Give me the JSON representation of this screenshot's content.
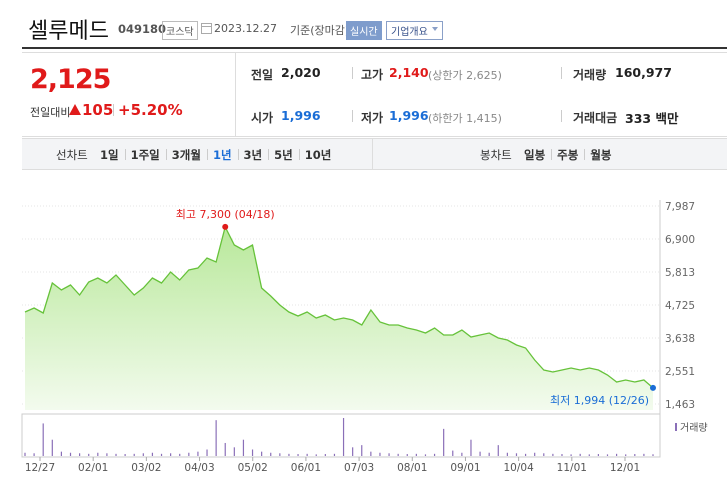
{
  "header": {
    "name": "셀루메드",
    "code": "049180",
    "market": "코스닥",
    "date": "2023.12.27",
    "basis": "기준(장마감)",
    "realtime": "실시간",
    "company": "기업개요"
  },
  "quote": {
    "price": "2,125",
    "change_label": "전일대비",
    "change": "105",
    "change_rate": "+5.20%",
    "rows": [
      [
        {
          "label": "전일",
          "value": "2,020"
        },
        {
          "label": "고가",
          "value": "2,140",
          "limit": "(상한가 2,625)"
        },
        {
          "label": "거래량",
          "value": "160,977"
        }
      ],
      [
        {
          "label": "시가",
          "value": "1,996"
        },
        {
          "label": "저가",
          "value": "1,996",
          "limit": "(하한가 1,415)"
        },
        {
          "label": "거래대금",
          "value": "333 백만"
        }
      ]
    ]
  },
  "tabs": {
    "line_label": "선차트",
    "line": [
      "1일",
      "1주일",
      "3개월",
      "1년",
      "3년",
      "5년",
      "10년"
    ],
    "selected_index": 3,
    "candle_label": "봉차트",
    "candle": [
      "일봉",
      "주봉",
      "월봉"
    ]
  },
  "chart": {
    "type": "area",
    "color": "#66c23a",
    "values": [
      4494,
      4626,
      4461,
      5450,
      5219,
      5384,
      5054,
      5483,
      5615,
      5450,
      5713,
      5384,
      5054,
      5285,
      5615,
      5450,
      5812,
      5549,
      5878,
      5944,
      6274,
      6142,
      7300,
      6702,
      6537,
      6702,
      5285,
      5021,
      4725,
      4494,
      4362,
      4494,
      4297,
      4396,
      4231,
      4297,
      4231,
      4066,
      4560,
      4165,
      4066,
      4066,
      3967,
      3901,
      3802,
      3967,
      3736,
      3736,
      3901,
      3670,
      3736,
      3802,
      3638,
      3572,
      3407,
      3308,
      2913,
      2583,
      2517,
      2583,
      2649,
      2583,
      2649,
      2583,
      2418,
      2188,
      2254,
      2188,
      2254,
      1994
    ],
    "volumes": [
      300000,
      250000,
      3000000,
      1500000,
      400000,
      300000,
      250000,
      200000,
      300000,
      250000,
      200000,
      180000,
      200000,
      250000,
      300000,
      200000,
      250000,
      200000,
      300000,
      400000,
      600000,
      3300000,
      1200000,
      800000,
      1500000,
      600000,
      400000,
      300000,
      250000,
      200000,
      180000,
      200000,
      150000,
      180000,
      200000,
      3500000,
      800000,
      1000000,
      400000,
      300000,
      250000,
      200000,
      180000,
      200000,
      150000,
      200000,
      2500000,
      500000,
      300000,
      1500000,
      400000,
      300000,
      1000000,
      300000,
      250000,
      200000,
      300000,
      250000,
      200000,
      180000,
      150000,
      200000,
      150000,
      180000,
      150000,
      200000,
      150000,
      180000,
      200000,
      160977
    ],
    "ylim": [
      1463,
      7987
    ],
    "yticks": [
      {
        "value": 7987,
        "label": "7,987"
      },
      {
        "value": 6900,
        "label": "6,900"
      },
      {
        "value": 5813,
        "label": "5,813"
      },
      {
        "value": 4725,
        "label": "4,725"
      },
      {
        "value": 3638,
        "label": "3,638"
      },
      {
        "value": 2551,
        "label": "2,551"
      },
      {
        "value": 1463,
        "label": "1,463"
      }
    ],
    "xlabels": [
      "12/27",
      "02/01",
      "03/02",
      "04/03",
      "05/02",
      "06/01",
      "07/03",
      "08/01",
      "09/01",
      "10/04",
      "11/01",
      "12/01"
    ],
    "high_label": "최고 7,300 (04/18)",
    "low_label": "최저 1,994 (12/26)",
    "volume_label": "거래량"
  }
}
